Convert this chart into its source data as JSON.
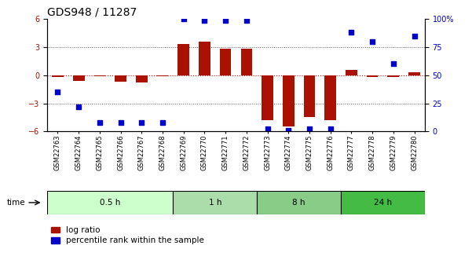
{
  "title": "GDS948 / 11287",
  "samples": [
    "GSM22763",
    "GSM22764",
    "GSM22765",
    "GSM22766",
    "GSM22767",
    "GSM22768",
    "GSM22769",
    "GSM22770",
    "GSM22771",
    "GSM22772",
    "GSM22773",
    "GSM22774",
    "GSM22775",
    "GSM22776",
    "GSM22777",
    "GSM22778",
    "GSM22779",
    "GSM22780"
  ],
  "log_ratio": [
    -0.15,
    -0.6,
    -0.1,
    -0.7,
    -0.8,
    -0.1,
    3.3,
    3.6,
    2.8,
    2.8,
    -4.8,
    -5.5,
    -4.5,
    -4.8,
    0.6,
    -0.2,
    -0.2,
    0.3
  ],
  "percentile": [
    35,
    22,
    8,
    8,
    8,
    8,
    100,
    99,
    99,
    99,
    2,
    1,
    2,
    2,
    88,
    80,
    60,
    85
  ],
  "time_groups": [
    {
      "label": "0.5 h",
      "start": 0,
      "end": 6,
      "color": "#ccffcc"
    },
    {
      "label": "1 h",
      "start": 6,
      "end": 10,
      "color": "#aaddaa"
    },
    {
      "label": "8 h",
      "start": 10,
      "end": 14,
      "color": "#88cc88"
    },
    {
      "label": "24 h",
      "start": 14,
      "end": 18,
      "color": "#44bb44"
    }
  ],
  "bar_color": "#aa1100",
  "dot_color": "#0000cc",
  "ylim_left": [
    -6,
    6
  ],
  "ylim_right": [
    0,
    100
  ],
  "yticks_left": [
    -6,
    -3,
    0,
    3,
    6
  ],
  "yticks_right": [
    0,
    25,
    50,
    75,
    100
  ],
  "zero_line_color": "#cc0000",
  "dotted_color": "#555555",
  "bg_color": "#ffffff",
  "title_fontsize": 10,
  "tick_fontsize": 7,
  "legend_fontsize": 7.5
}
